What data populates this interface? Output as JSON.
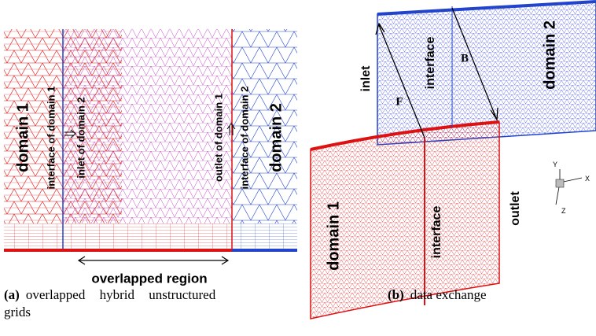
{
  "panel_a": {
    "labels": [
      "domain 1",
      "interface of domain 1",
      "inlet of domain 2",
      "outlet of domain 1",
      "interface of domain 2",
      "domain 2",
      "overlapped region"
    ],
    "caption": {
      "tag": "(a)",
      "text": "overlapped hybrid unstructured",
      "text2": "grids"
    }
  },
  "panel_b": {
    "labels": [
      "inlet",
      "F",
      "interface",
      "B",
      "domain 2",
      "domain 1",
      "interface",
      "outlet"
    ],
    "axes": [
      "Y",
      "X",
      "Z"
    ],
    "caption": {
      "tag": "(b)",
      "text": "data exchange"
    }
  }
}
